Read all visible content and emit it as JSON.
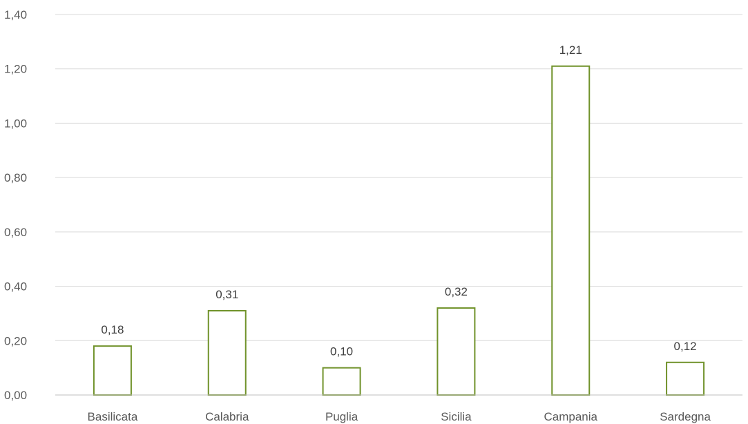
{
  "chart_data": {
    "type": "bar",
    "title": "",
    "xlabel": "",
    "ylabel": "",
    "categories": [
      "Basilicata",
      "Calabria",
      "Puglia",
      "Sicilia",
      "Campania",
      "Sardegna"
    ],
    "values": [
      0.18,
      0.31,
      0.1,
      0.32,
      1.21,
      0.12
    ],
    "data_labels": [
      "0,18",
      "0,31",
      "0,10",
      "0,32",
      "1,21",
      "0,12"
    ],
    "ylim": [
      0,
      1.4
    ],
    "y_ticks": [
      0,
      0.2,
      0.4,
      0.6,
      0.8,
      1.0,
      1.2,
      1.4
    ],
    "y_tick_labels": [
      "0,00",
      "0,20",
      "0,40",
      "0,60",
      "0,80",
      "1,00",
      "1,20",
      "1,40"
    ],
    "grid": true,
    "legend": "none",
    "colors": {
      "bar_outline": "#70922a",
      "bar_fill": "#ffffff"
    }
  }
}
